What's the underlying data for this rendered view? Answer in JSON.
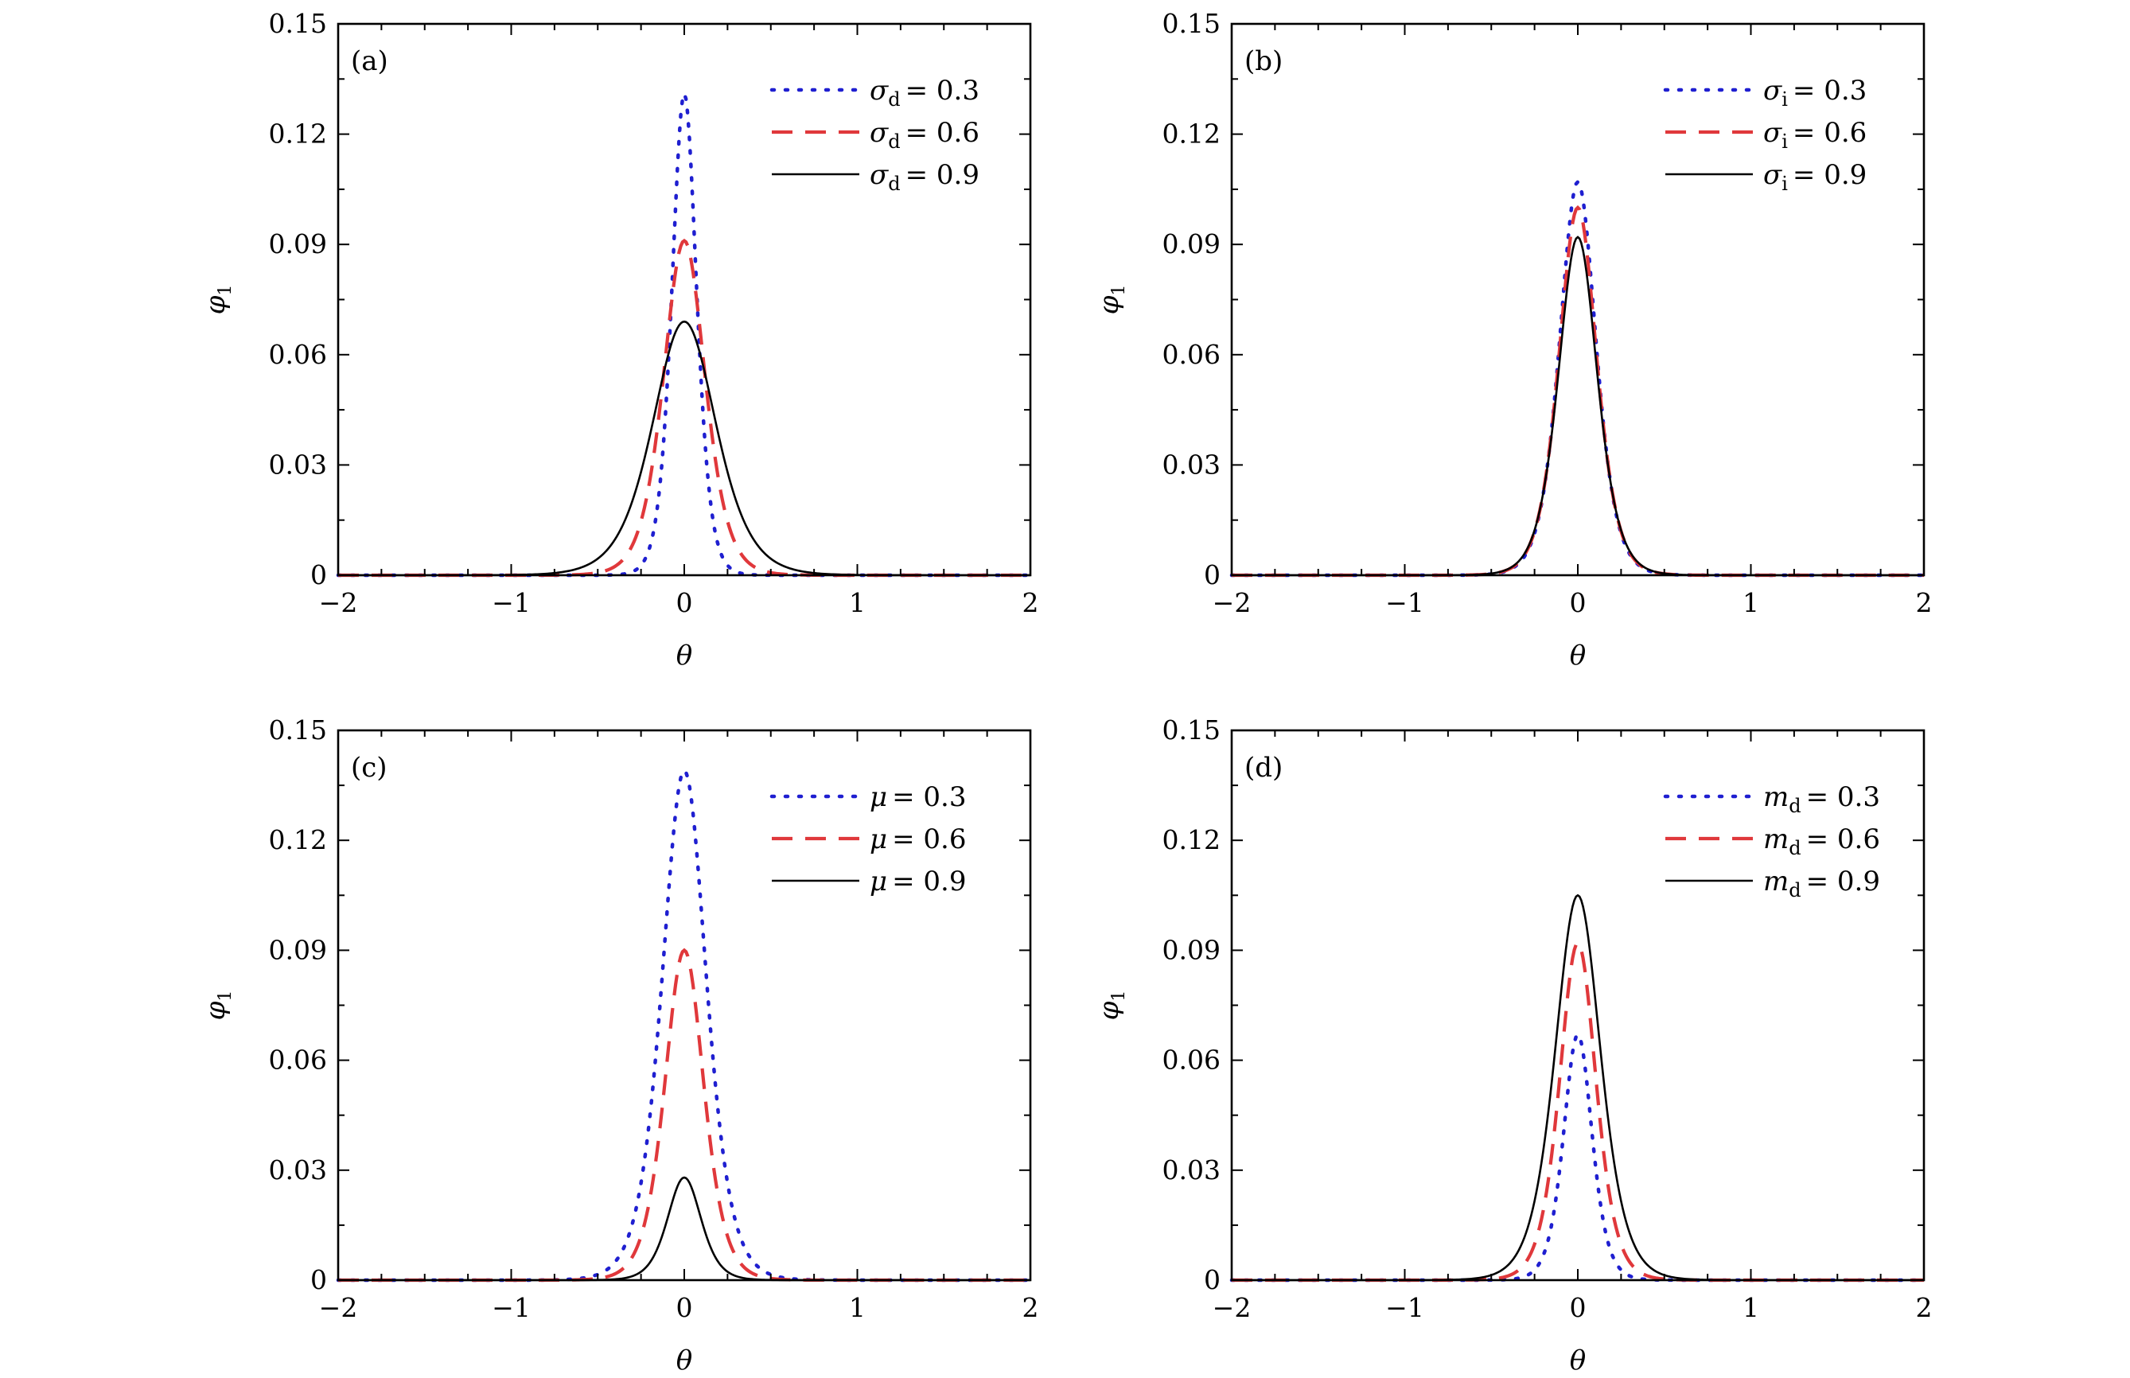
{
  "chart_data": [
    {
      "type": "line",
      "panel": "(a)",
      "xlabel": "θ",
      "ylabel": "φ",
      "ylabel_sub": "1",
      "xlim": [
        -2,
        2
      ],
      "ylim": [
        0,
        0.15
      ],
      "xticks": [
        -2,
        -1,
        0,
        1,
        2
      ],
      "xtick_labels": [
        "−2",
        "−1",
        "0",
        "1",
        "2"
      ],
      "yticks": [
        0,
        0.03,
        0.06,
        0.09,
        0.12,
        0.15
      ],
      "ytick_labels": [
        "0",
        "0.03",
        "0.06",
        "0.09",
        "0.12",
        "0.15"
      ],
      "legend_position": "top-right",
      "series": [
        {
          "name": "σd = 0.3",
          "var": "σ",
          "sub": "d",
          "value": "= 0.3",
          "style": "dotted",
          "color": "#1f1fd0",
          "peak": 0.131,
          "width": 0.095
        },
        {
          "name": "σd = 0.6",
          "var": "σ",
          "sub": "d",
          "value": "= 0.6",
          "style": "dashed",
          "color": "#e0383b",
          "peak": 0.091,
          "width": 0.16
        },
        {
          "name": "σd = 0.9",
          "var": "σ",
          "sub": "d",
          "value": "= 0.9",
          "style": "solid",
          "color": "#000000",
          "peak": 0.069,
          "width": 0.245
        }
      ]
    },
    {
      "type": "line",
      "panel": "(b)",
      "xlabel": "θ",
      "ylabel": "φ",
      "ylabel_sub": "1",
      "xlim": [
        -2,
        2
      ],
      "ylim": [
        0,
        0.15
      ],
      "xticks": [
        -2,
        -1,
        0,
        1,
        2
      ],
      "xtick_labels": [
        "−2",
        "−1",
        "0",
        "1",
        "2"
      ],
      "yticks": [
        0,
        0.03,
        0.06,
        0.09,
        0.12,
        0.15
      ],
      "ytick_labels": [
        "0",
        "0.03",
        "0.06",
        "0.09",
        "0.12",
        "0.15"
      ],
      "legend_position": "top-right",
      "series": [
        {
          "name": "σi = 0.3",
          "var": "σ",
          "sub": "i",
          "value": "= 0.3",
          "style": "dotted",
          "color": "#1f1fd0",
          "peak": 0.107,
          "width": 0.14
        },
        {
          "name": "σi = 0.6",
          "var": "σ",
          "sub": "i",
          "value": "= 0.6",
          "style": "dashed",
          "color": "#e0383b",
          "peak": 0.1,
          "width": 0.145
        },
        {
          "name": "σi = 0.9",
          "var": "σ",
          "sub": "i",
          "value": "= 0.9",
          "style": "solid",
          "color": "#000000",
          "peak": 0.092,
          "width": 0.15
        }
      ]
    },
    {
      "type": "line",
      "panel": "(c)",
      "xlabel": "θ",
      "ylabel": "φ",
      "ylabel_sub": "1",
      "xlim": [
        -2,
        2
      ],
      "ylim": [
        0,
        0.15
      ],
      "xticks": [
        -2,
        -1,
        0,
        1,
        2
      ],
      "xtick_labels": [
        "−2",
        "−1",
        "0",
        "1",
        "2"
      ],
      "yticks": [
        0,
        0.03,
        0.06,
        0.09,
        0.12,
        0.15
      ],
      "ytick_labels": [
        "0",
        "0.03",
        "0.06",
        "0.09",
        "0.12",
        "0.15"
      ],
      "legend_position": "top-right",
      "series": [
        {
          "name": "μ = 0.3",
          "var": "μ",
          "sub": "",
          "value": "= 0.3",
          "style": "dotted",
          "color": "#1f1fd0",
          "peak": 0.139,
          "width": 0.17
        },
        {
          "name": "μ = 0.6",
          "var": "μ",
          "sub": "",
          "value": "= 0.6",
          "style": "dashed",
          "color": "#e0383b",
          "peak": 0.09,
          "width": 0.15
        },
        {
          "name": "μ = 0.9",
          "var": "μ",
          "sub": "",
          "value": "= 0.9",
          "style": "solid",
          "color": "#000000",
          "peak": 0.028,
          "width": 0.13
        }
      ]
    },
    {
      "type": "line",
      "panel": "(d)",
      "xlabel": "θ",
      "ylabel": "φ",
      "ylabel_sub": "1",
      "xlim": [
        -2,
        2
      ],
      "ylim": [
        0,
        0.15
      ],
      "xticks": [
        -2,
        -1,
        0,
        1,
        2
      ],
      "xtick_labels": [
        "−2",
        "−1",
        "0",
        "1",
        "2"
      ],
      "yticks": [
        0,
        0.03,
        0.06,
        0.09,
        0.12,
        0.15
      ],
      "ytick_labels": [
        "0",
        "0.03",
        "0.06",
        "0.09",
        "0.12",
        "0.15"
      ],
      "legend_position": "top-right",
      "series": [
        {
          "name": "md = 0.3",
          "var": "m",
          "sub": "d",
          "value": "= 0.3",
          "style": "dotted",
          "color": "#1f1fd0",
          "peak": 0.067,
          "width": 0.11
        },
        {
          "name": "md = 0.6",
          "var": "m",
          "sub": "d",
          "value": "= 0.6",
          "style": "dashed",
          "color": "#e0383b",
          "peak": 0.092,
          "width": 0.14
        },
        {
          "name": "md = 0.9",
          "var": "m",
          "sub": "d",
          "value": "= 0.9",
          "style": "solid",
          "color": "#000000",
          "peak": 0.105,
          "width": 0.175
        }
      ]
    }
  ]
}
